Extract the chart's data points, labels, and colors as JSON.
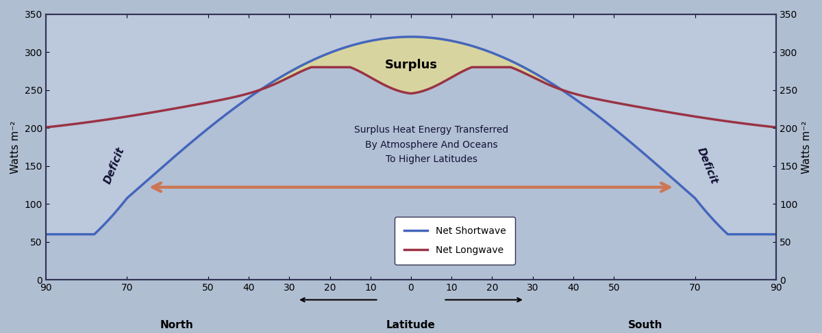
{
  "ylabel_left": "Watts m⁻²",
  "ylabel_right": "Watts m⁻²",
  "ylim": [
    0,
    350
  ],
  "yticks": [
    0,
    50,
    100,
    150,
    200,
    250,
    300,
    350
  ],
  "xtick_labels": [
    "90",
    "70",
    "50",
    "40",
    "30",
    "20",
    "10",
    "0",
    "10",
    "20",
    "30",
    "40",
    "50",
    "70",
    "90"
  ],
  "xtick_positions": [
    -90,
    -70,
    -50,
    -40,
    -30,
    -20,
    -10,
    0,
    10,
    20,
    30,
    40,
    50,
    70,
    90
  ],
  "shortwave_color": "#4466BB",
  "longwave_color": "#993344",
  "surplus_fill_color": "#D8D4A0",
  "deficit_fill_color": "#AABBD0",
  "plot_bg_color": "#BCC8DC",
  "fig_bg_color": "#B0BED2",
  "surplus_label": "Surplus",
  "legend_shortwave": "Net Shortwave",
  "legend_longwave": "Net Longwave",
  "arrow_color": "#CC7755",
  "north_label": "North",
  "south_label": "South",
  "latitude_label": "Latitude",
  "heat_text": "Surplus Heat Energy Transferred\nBy Atmosphere And Oceans\nTo Higher Latitudes"
}
